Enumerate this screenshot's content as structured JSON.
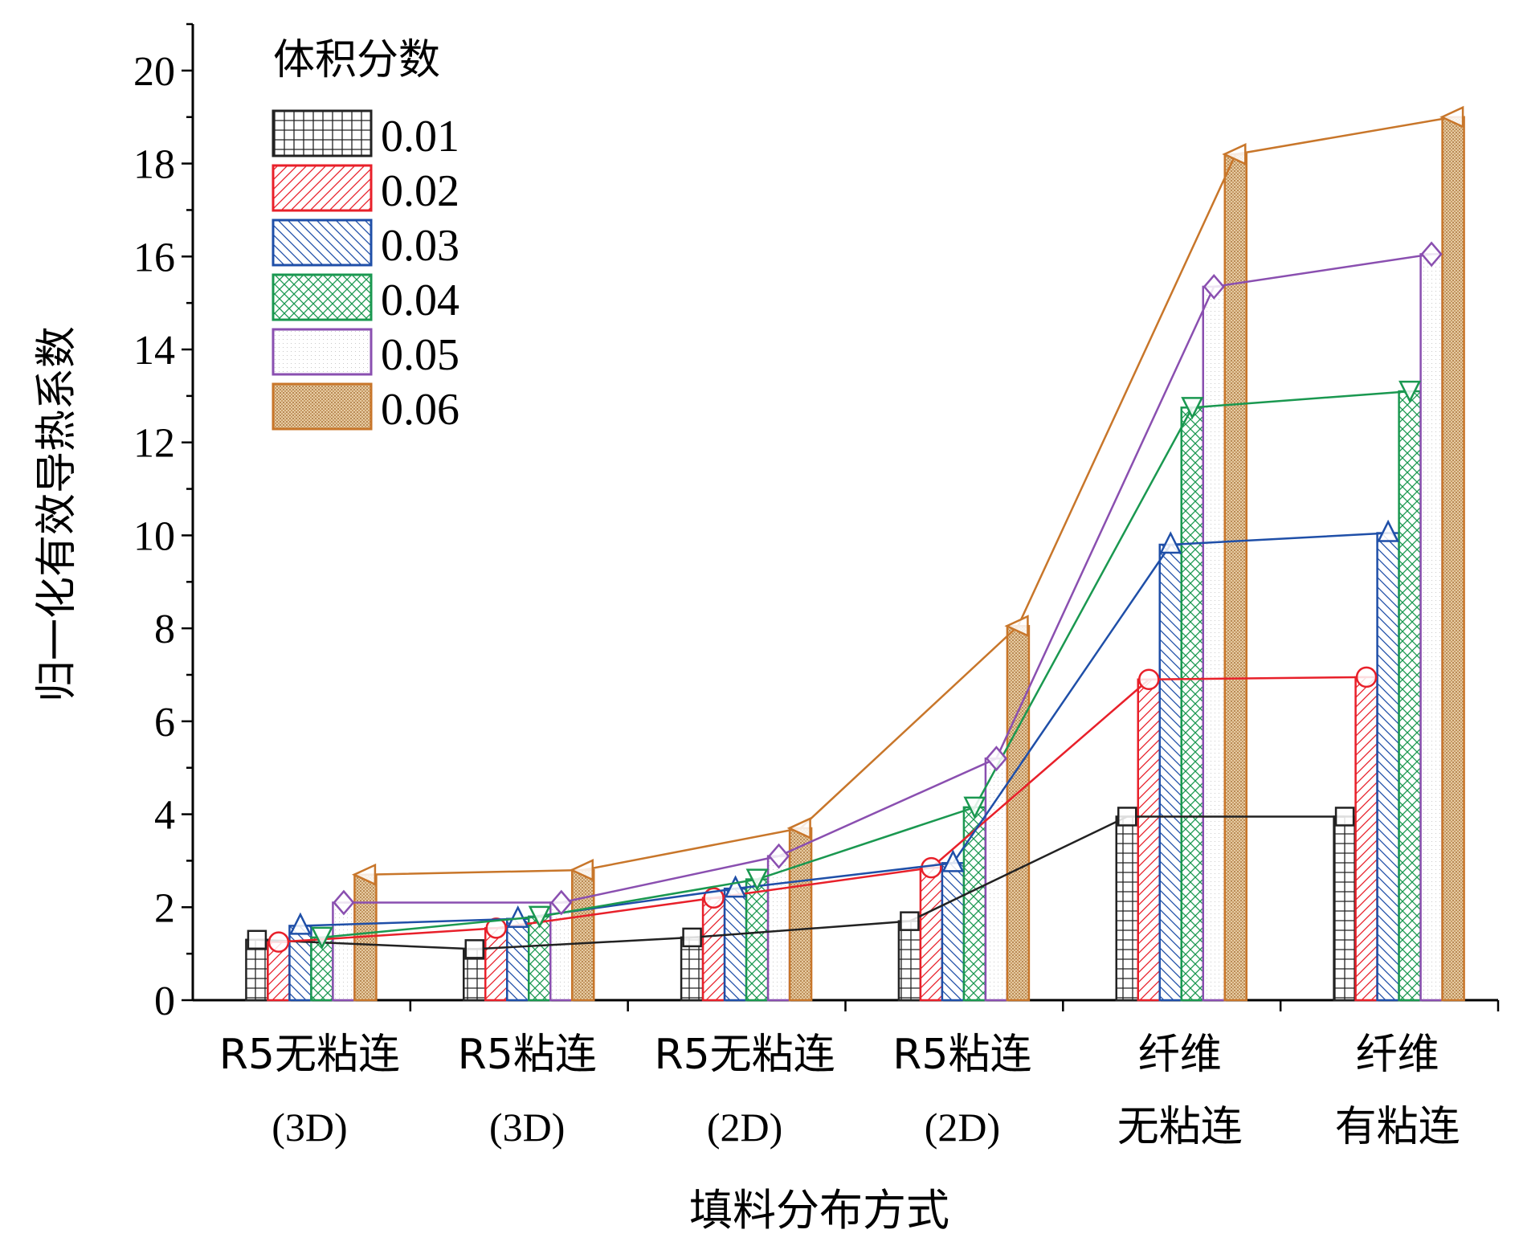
{
  "chart_data": {
    "type": "bar",
    "xlabel": "填料分布方式",
    "ylabel": "归一化有效导热系数",
    "ylim": [
      0,
      21
    ],
    "yticks": [
      0,
      2,
      4,
      6,
      8,
      10,
      12,
      14,
      16,
      18,
      20
    ],
    "grid": false,
    "legend_title": "体积分数",
    "legend_position": "top-left",
    "categories": [
      [
        "R5无粘连",
        "(3D)"
      ],
      [
        "R5粘连",
        "(3D)"
      ],
      [
        "R5无粘连",
        "(2D)"
      ],
      [
        "R5粘连",
        "(2D)"
      ],
      [
        "纤维",
        "无粘连"
      ],
      [
        "纤维",
        "有粘连"
      ]
    ],
    "series": [
      {
        "name": "0.01",
        "color": "#222222",
        "pattern": "grid",
        "marker": "square",
        "values": [
          1.3,
          1.1,
          1.35,
          1.7,
          3.95,
          3.95
        ]
      },
      {
        "name": "0.02",
        "color": "#e8202a",
        "pattern": "diag-right",
        "marker": "circle",
        "values": [
          1.25,
          1.55,
          2.2,
          2.85,
          6.9,
          6.95
        ]
      },
      {
        "name": "0.03",
        "color": "#1f4fa8",
        "pattern": "diag-left",
        "marker": "triangle-up",
        "values": [
          1.6,
          1.75,
          2.4,
          2.95,
          9.8,
          10.05
        ]
      },
      {
        "name": "0.04",
        "color": "#1a9850",
        "pattern": "cross",
        "marker": "triangle-down",
        "values": [
          1.35,
          1.8,
          2.6,
          4.15,
          12.75,
          13.1
        ]
      },
      {
        "name": "0.05",
        "color": "#8a4fb0",
        "pattern": "dots",
        "marker": "diamond",
        "values": [
          2.1,
          2.1,
          3.1,
          5.2,
          15.35,
          16.05
        ]
      },
      {
        "name": "0.06",
        "color": "#c8762a",
        "pattern": "dense-dots",
        "marker": "triangle-left",
        "values": [
          2.7,
          2.8,
          3.7,
          8.05,
          18.2,
          19.0
        ]
      }
    ]
  }
}
